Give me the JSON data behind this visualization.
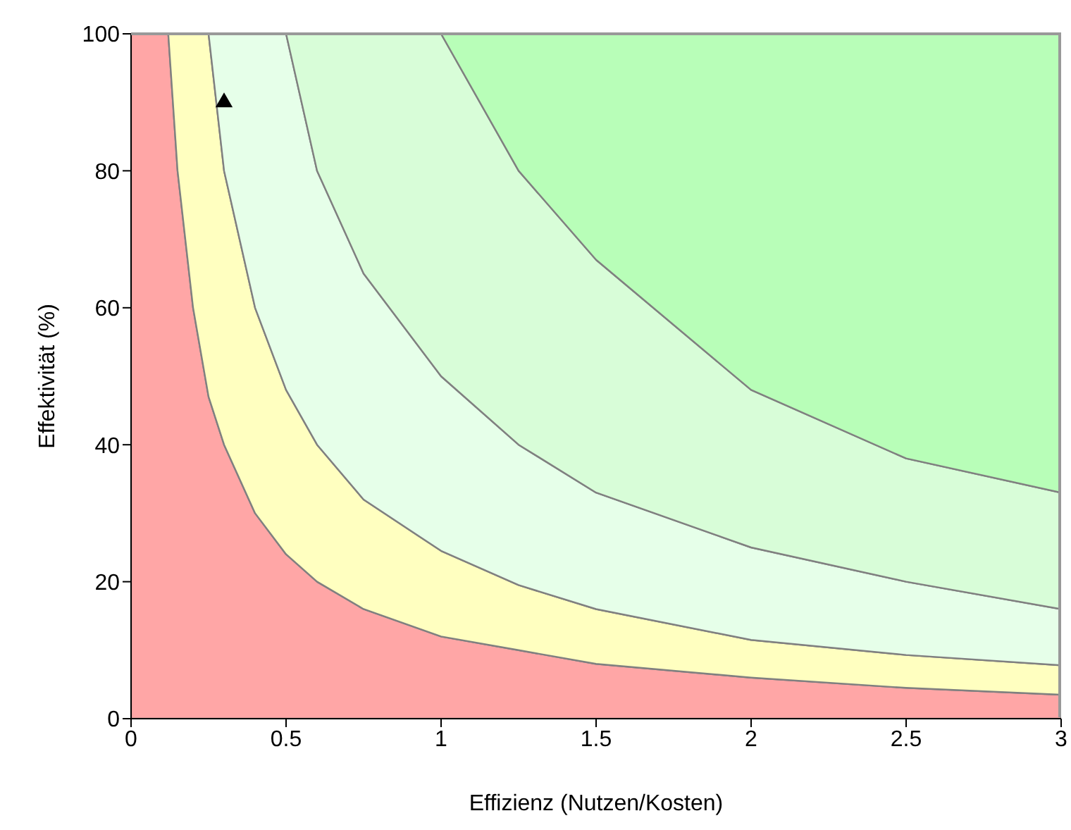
{
  "chart_data": {
    "type": "area",
    "stacked": true,
    "xlabel": "Effizienz (Nutzen/Kosten)",
    "ylabel": "Effektivität (%)",
    "xlim": [
      0,
      3
    ],
    "xticks": [
      0,
      0.5,
      1,
      1.5,
      2,
      2.5,
      3
    ],
    "ylim": [
      0,
      100
    ],
    "yticks": [
      0,
      20,
      40,
      60,
      80,
      100
    ],
    "grid": false,
    "x": [
      0,
      0.12,
      0.15,
      0.2,
      0.25,
      0.3,
      0.4,
      0.5,
      0.6,
      0.75,
      1,
      1.25,
      1.5,
      2,
      2.5,
      3
    ],
    "series": [
      {
        "color": "#ffa6a6",
        "values": [
          100,
          100,
          80,
          60,
          47,
          40,
          30,
          24,
          20,
          16,
          12,
          10,
          8,
          6,
          4.5,
          3.5
        ]
      },
      {
        "color": "#ffffc0",
        "values": [
          0,
          0,
          20,
          40,
          53,
          40,
          30,
          24,
          20,
          16,
          12.5,
          9.5,
          8,
          5.5,
          4.8,
          4.3
        ]
      },
      {
        "color": "#e6ffe9",
        "values": [
          0,
          0,
          0,
          0,
          0,
          20,
          40,
          52,
          40,
          33,
          25.5,
          20.5,
          17,
          13.5,
          10.7,
          8.2
        ]
      },
      {
        "color": "#d8fdd8",
        "values": [
          0,
          0,
          0,
          0,
          0,
          0,
          0,
          0,
          20,
          35,
          50,
          40,
          34,
          23,
          18,
          17
        ]
      },
      {
        "color": "#b8feb8",
        "values": [
          0,
          0,
          0,
          0,
          0,
          0,
          0,
          0,
          0,
          0,
          0,
          20,
          33,
          52,
          62,
          67
        ]
      },
      {
        "type": "scatter",
        "color": "#000000",
        "marker": "triangle",
        "x": [
          0.3
        ],
        "values": [
          90
        ]
      }
    ]
  }
}
